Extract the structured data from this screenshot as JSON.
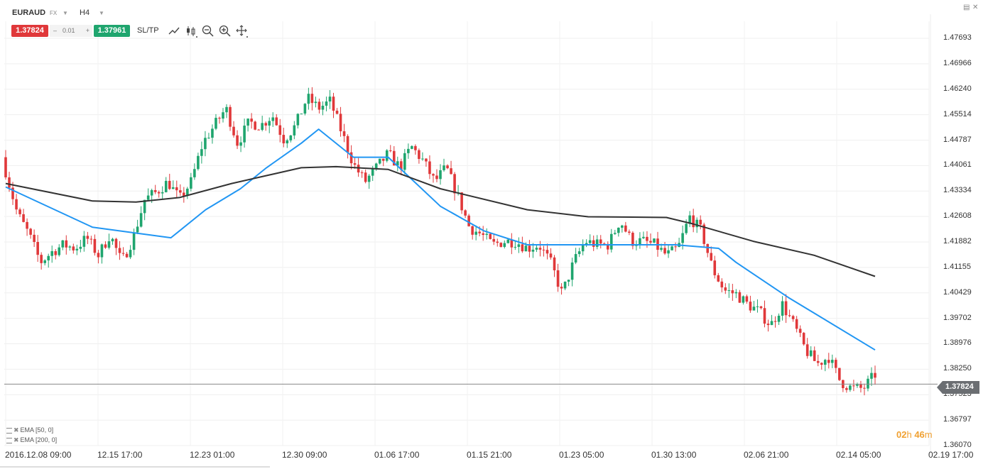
{
  "toolbar": {
    "symbol": "EURAUD",
    "market": "FX",
    "timeframe": "H4",
    "sell_price": "1.37824",
    "spread": "0.01",
    "spread_minus": "–",
    "spread_plus": "+",
    "buy_price": "1.37961",
    "sltp_label": "SL/TP",
    "tools": [
      "line-chart-icon",
      "candlestick-icon",
      "zoom-out-icon",
      "zoom-in-icon",
      "crosshair-icon"
    ]
  },
  "window": {
    "restore_icon": "▤",
    "close_icon": "✕"
  },
  "indicators": [
    {
      "label": "EMA [50, 0]"
    },
    {
      "label": "EMA [200, 0]"
    }
  ],
  "current_price_tag": "1.37824",
  "timer": {
    "hours": "02",
    "h_unit": "h",
    "minutes": "46",
    "m_unit": "m"
  },
  "colors": {
    "up": "#1fa56e",
    "down": "#e0383a",
    "ema50": "#2196f3",
    "ema200": "#333333",
    "sell": "#e0383a",
    "buy": "#1fa56e",
    "timer": "#f0a030"
  },
  "chart_data": {
    "type": "candlestick",
    "title": "",
    "y_ticks": [
      "1.47693",
      "1.46966",
      "1.46240",
      "1.45514",
      "1.44787",
      "1.44061",
      "1.43334",
      "1.42608",
      "1.41882",
      "1.41155",
      "1.40429",
      "1.39702",
      "1.38976",
      "1.38250",
      "1.37523",
      "1.36797",
      "1.36070"
    ],
    "x_ticks": [
      "2016.12.08 09:00",
      "12.15 17:00",
      "12.23 01:00",
      "12.30 09:00",
      "01.06 17:00",
      "01.15 21:00",
      "01.23 05:00",
      "01.30 13:00",
      "02.06 21:00",
      "02.14 05:00",
      "02.19 17:00"
    ],
    "ylim": [
      1.3607,
      1.47693
    ],
    "current_price": 1.37824,
    "close_path": [
      1.439,
      1.427,
      1.421,
      1.413,
      1.416,
      1.418,
      1.417,
      1.42,
      1.415,
      1.421,
      1.413,
      1.42,
      1.431,
      1.433,
      1.436,
      1.431,
      1.436,
      1.447,
      1.452,
      1.457,
      1.447,
      1.453,
      1.452,
      1.455,
      1.448,
      1.452,
      1.46,
      1.457,
      1.459,
      1.45,
      1.441,
      1.436,
      1.44,
      1.444,
      1.44,
      1.446,
      1.442,
      1.436,
      1.44,
      1.432,
      1.423,
      1.421,
      1.418,
      1.419,
      1.419,
      1.417,
      1.418,
      1.413,
      1.404,
      1.413,
      1.419,
      1.418,
      1.418,
      1.425,
      1.419,
      1.419,
      1.418,
      1.415,
      1.417,
      1.426,
      1.422,
      1.411,
      1.405,
      1.404,
      1.401,
      1.399,
      1.395,
      1.401,
      1.395,
      1.388,
      1.384,
      1.386,
      1.379,
      1.377,
      1.377,
      1.381
    ],
    "series": [
      {
        "name": "EMA [50, 0]",
        "x_frac": [
          0.0,
          0.1,
          0.19,
          0.2,
          0.23,
          0.27,
          0.3,
          0.34,
          0.36,
          0.4,
          0.44,
          0.5,
          0.55,
          0.6,
          0.65,
          0.7,
          0.77,
          0.82,
          0.84,
          0.9,
          1.0
        ],
        "values": [
          1.4345,
          1.423,
          1.42,
          1.422,
          1.428,
          1.434,
          1.44,
          1.447,
          1.451,
          1.443,
          1.443,
          1.429,
          1.422,
          1.418,
          1.418,
          1.418,
          1.418,
          1.417,
          1.413,
          1.403,
          1.388
        ]
      },
      {
        "name": "EMA [200, 0]",
        "x_frac": [
          0.0,
          0.1,
          0.15,
          0.2,
          0.26,
          0.34,
          0.38,
          0.44,
          0.5,
          0.6,
          0.67,
          0.76,
          0.79,
          0.86,
          0.93,
          1.0
        ],
        "values": [
          1.4355,
          1.4305,
          1.4302,
          1.4315,
          1.4355,
          1.44,
          1.4403,
          1.4395,
          1.434,
          1.428,
          1.426,
          1.4258,
          1.424,
          1.419,
          1.415,
          1.409
        ]
      }
    ]
  }
}
